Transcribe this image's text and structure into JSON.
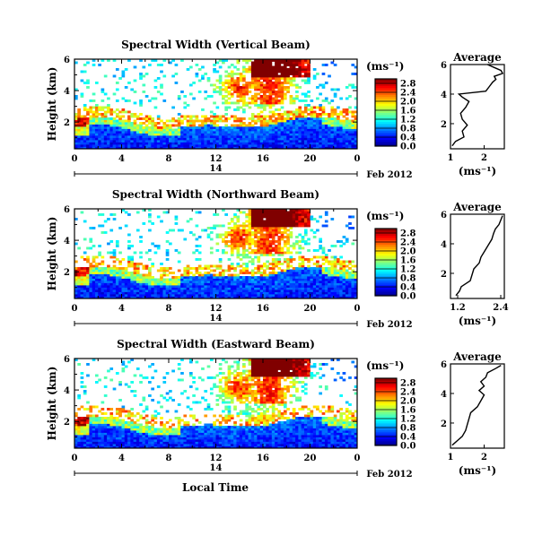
{
  "figure": {
    "xlabel": "Local Time",
    "date_label": "Feb 2012",
    "colorbar_unit": "(ms⁻¹)",
    "avg_unit": "(ms⁻¹)"
  },
  "chart_data": [
    {
      "type": "heatmap",
      "title": "Spectral Width (Vertical Beam)",
      "ylabel": "Height (km)",
      "xlabel": "Local Time",
      "x_ticks": [
        "0",
        "4",
        "8",
        "12",
        "16",
        "20",
        "0"
      ],
      "x_day_label": "14",
      "xlim": [
        0,
        24
      ],
      "y_ticks": [
        "2",
        "4",
        "6"
      ],
      "ylim": [
        0.3,
        6
      ],
      "colorbar": {
        "ticks": [
          "0.0",
          "0.4",
          "0.8",
          "1.2",
          "1.6",
          "2.0",
          "2.4",
          "2.8"
        ],
        "range": [
          0,
          3.0
        ]
      },
      "average": {
        "title": "Average",
        "x_ticks": [
          "1",
          "2"
        ],
        "xlim": [
          1,
          2.6
        ],
        "y_ticks": [
          "2",
          "4",
          "6"
        ],
        "ylim": [
          0.3,
          6
        ],
        "heights": [
          0.5,
          0.8,
          1.1,
          1.5,
          1.9,
          2.3,
          2.7,
          3.1,
          3.5,
          3.8,
          4.0,
          4.2,
          4.5,
          4.8,
          5.0,
          5.2,
          5.4,
          5.6,
          5.8,
          6.0
        ],
        "values": [
          1.05,
          1.15,
          1.4,
          1.35,
          1.5,
          1.35,
          1.3,
          1.45,
          1.55,
          1.35,
          1.25,
          2.05,
          2.15,
          2.25,
          2.35,
          2.3,
          2.55,
          2.5,
          2.3,
          2.1
        ]
      }
    },
    {
      "type": "heatmap",
      "title": "Spectral Width (Northward Beam)",
      "ylabel": "Height (km)",
      "xlabel": "Local Time",
      "x_ticks": [
        "0",
        "4",
        "8",
        "12",
        "16",
        "20",
        "0"
      ],
      "x_day_label": "14",
      "xlim": [
        0,
        24
      ],
      "y_ticks": [
        "2",
        "4",
        "6"
      ],
      "ylim": [
        0.3,
        6
      ],
      "colorbar": {
        "ticks": [
          "0.0",
          "0.4",
          "0.8",
          "1.2",
          "1.6",
          "2.0",
          "2.4",
          "2.8"
        ],
        "range": [
          0,
          3.0
        ]
      },
      "average": {
        "title": "Average",
        "x_ticks": [
          "1.2",
          "2.4"
        ],
        "xlim": [
          1.0,
          2.5
        ],
        "y_ticks": [
          "2",
          "4",
          "6"
        ],
        "ylim": [
          0.3,
          6
        ],
        "heights": [
          0.5,
          0.8,
          1.1,
          1.5,
          1.9,
          2.3,
          2.7,
          3.1,
          3.5,
          3.9,
          4.3,
          4.7,
          5.0,
          5.3,
          5.6,
          5.9
        ],
        "values": [
          1.15,
          1.25,
          1.3,
          1.55,
          1.6,
          1.65,
          1.8,
          1.85,
          1.95,
          2.05,
          2.15,
          2.2,
          2.25,
          2.35,
          2.4,
          2.45
        ]
      }
    },
    {
      "type": "heatmap",
      "title": "Spectral Width (Eastward Beam)",
      "ylabel": "Height (km)",
      "xlabel": "Local Time",
      "x_ticks": [
        "0",
        "4",
        "8",
        "12",
        "16",
        "20",
        "0"
      ],
      "x_day_label": "14",
      "xlim": [
        0,
        24
      ],
      "y_ticks": [
        "2",
        "4",
        "6"
      ],
      "ylim": [
        0.3,
        6
      ],
      "colorbar": {
        "ticks": [
          "0.0",
          "0.4",
          "0.8",
          "1.2",
          "1.6",
          "2.0",
          "2.4",
          "2.8"
        ],
        "range": [
          0,
          3.0
        ]
      },
      "average": {
        "title": "Average",
        "x_ticks": [
          "1",
          "2"
        ],
        "xlim": [
          1,
          2.6
        ],
        "y_ticks": [
          "2",
          "4",
          "6"
        ],
        "ylim": [
          0.3,
          6
        ],
        "heights": [
          0.5,
          0.8,
          1.1,
          1.5,
          1.9,
          2.3,
          2.7,
          3.1,
          3.5,
          3.9,
          4.2,
          4.5,
          4.8,
          5.1,
          5.4,
          5.7,
          5.9
        ],
        "values": [
          1.05,
          1.2,
          1.35,
          1.45,
          1.5,
          1.55,
          1.6,
          1.8,
          1.9,
          2.0,
          1.85,
          2.0,
          1.9,
          2.05,
          2.1,
          2.35,
          2.5
        ]
      }
    }
  ]
}
